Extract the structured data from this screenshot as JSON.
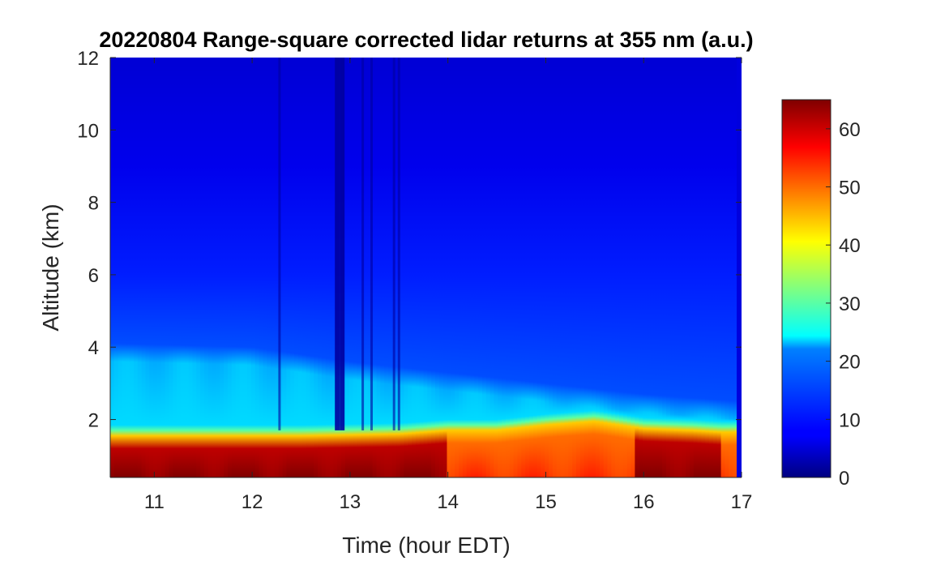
{
  "chart_data": {
    "type": "heatmap",
    "title": "20220804  Range-square corrected lidar returns at 355 nm (a.u.)",
    "xlabel": "Time (hour EDT)",
    "ylabel": "Altitude (km)",
    "xlim": [
      10.55,
      17.0
    ],
    "ylim": [
      0.4,
      12
    ],
    "x_ticks": [
      "11",
      "12",
      "13",
      "14",
      "15",
      "16",
      "17"
    ],
    "y_ticks": [
      "2",
      "4",
      "6",
      "8",
      "10",
      "12"
    ],
    "colorbar": {
      "colormap": "jet",
      "clim": [
        0,
        65
      ],
      "ticks": [
        "0",
        "10",
        "20",
        "30",
        "40",
        "50",
        "60"
      ]
    },
    "boundary_layer_top_km": [
      {
        "time": 10.6,
        "height": 1.7
      },
      {
        "time": 11.5,
        "height": 1.7
      },
      {
        "time": 12.5,
        "height": 1.7
      },
      {
        "time": 13.5,
        "height": 1.75
      },
      {
        "time": 14.0,
        "height": 1.85
      },
      {
        "time": 14.5,
        "height": 1.85
      },
      {
        "time": 15.0,
        "height": 2.0
      },
      {
        "time": 15.5,
        "height": 2.1
      },
      {
        "time": 16.0,
        "height": 1.9
      },
      {
        "time": 16.5,
        "height": 1.85
      },
      {
        "time": 16.8,
        "height": 1.8
      }
    ],
    "residual_layer_top_km": [
      {
        "time": 10.6,
        "height": 3.8
      },
      {
        "time": 12.0,
        "height": 3.7
      },
      {
        "time": 13.0,
        "height": 3.3
      },
      {
        "time": 14.0,
        "height": 3.0
      },
      {
        "time": 15.0,
        "height": 2.7
      },
      {
        "time": 16.0,
        "height": 2.4
      },
      {
        "time": 17.0,
        "height": 2.2
      }
    ],
    "low_signal_streaks_hour": [
      12.28,
      12.87,
      12.92,
      13.13,
      13.22,
      13.45,
      13.5
    ]
  }
}
